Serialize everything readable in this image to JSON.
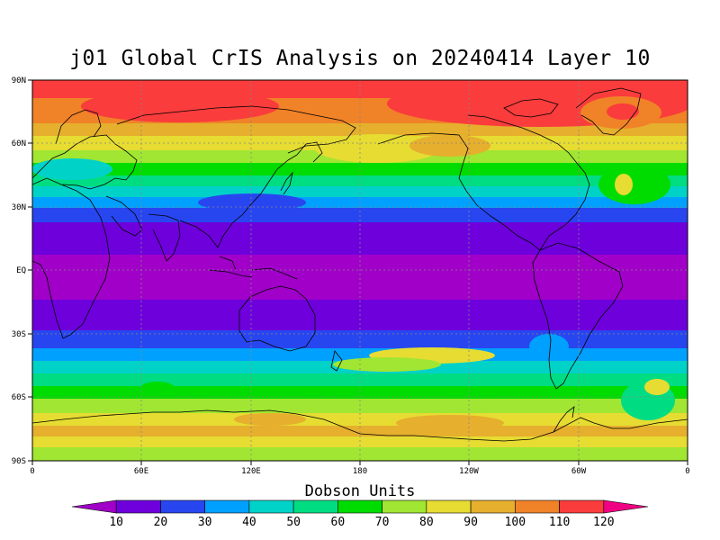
{
  "title": "j01 Global CrIS Analysis on 20240414 Layer 10",
  "map": {
    "lat_labels": [
      "90N",
      "60N",
      "30N",
      "EQ",
      "30S",
      "60S",
      "90S"
    ],
    "lon_labels": [
      "0",
      "60E",
      "120E",
      "180",
      "120W",
      "60W",
      "0"
    ],
    "grid": "dotted",
    "land_outline_color": "#000000"
  },
  "colorbar": {
    "title": "Dobson Units",
    "labels": [
      "10",
      "20",
      "30",
      "40",
      "50",
      "60",
      "70",
      "80",
      "90",
      "100",
      "110",
      "120"
    ],
    "colors": [
      "#a000c8",
      "#6e00dc",
      "#2846f0",
      "#00a0ff",
      "#00d2c8",
      "#00dc82",
      "#00dc00",
      "#a0e632",
      "#e6dc32",
      "#e6af2d",
      "#f08228",
      "#fa3c3c",
      "#f00082"
    ],
    "extend": "both"
  },
  "chart_data": {
    "type": "heatmap",
    "title": "j01 Global CrIS Analysis on 20240414 Layer 10",
    "colorbar_label": "Dobson Units",
    "lon_range": [
      0,
      360
    ],
    "lat_range": [
      -90,
      90
    ],
    "levels": [
      10,
      20,
      30,
      40,
      50,
      60,
      70,
      80,
      90,
      100,
      110,
      120
    ],
    "zonal_mean_profile": [
      {
        "lat": 90,
        "value": 125
      },
      {
        "lat": 75,
        "value": 110
      },
      {
        "lat": 60,
        "value": 95
      },
      {
        "lat": 45,
        "value": 65
      },
      {
        "lat": 30,
        "value": 35
      },
      {
        "lat": 15,
        "value": 12
      },
      {
        "lat": 0,
        "value": 9
      },
      {
        "lat": -15,
        "value": 9
      },
      {
        "lat": -30,
        "value": 25
      },
      {
        "lat": -45,
        "value": 55
      },
      {
        "lat": -60,
        "value": 75
      },
      {
        "lat": -75,
        "value": 92
      },
      {
        "lat": -90,
        "value": 85
      }
    ]
  }
}
